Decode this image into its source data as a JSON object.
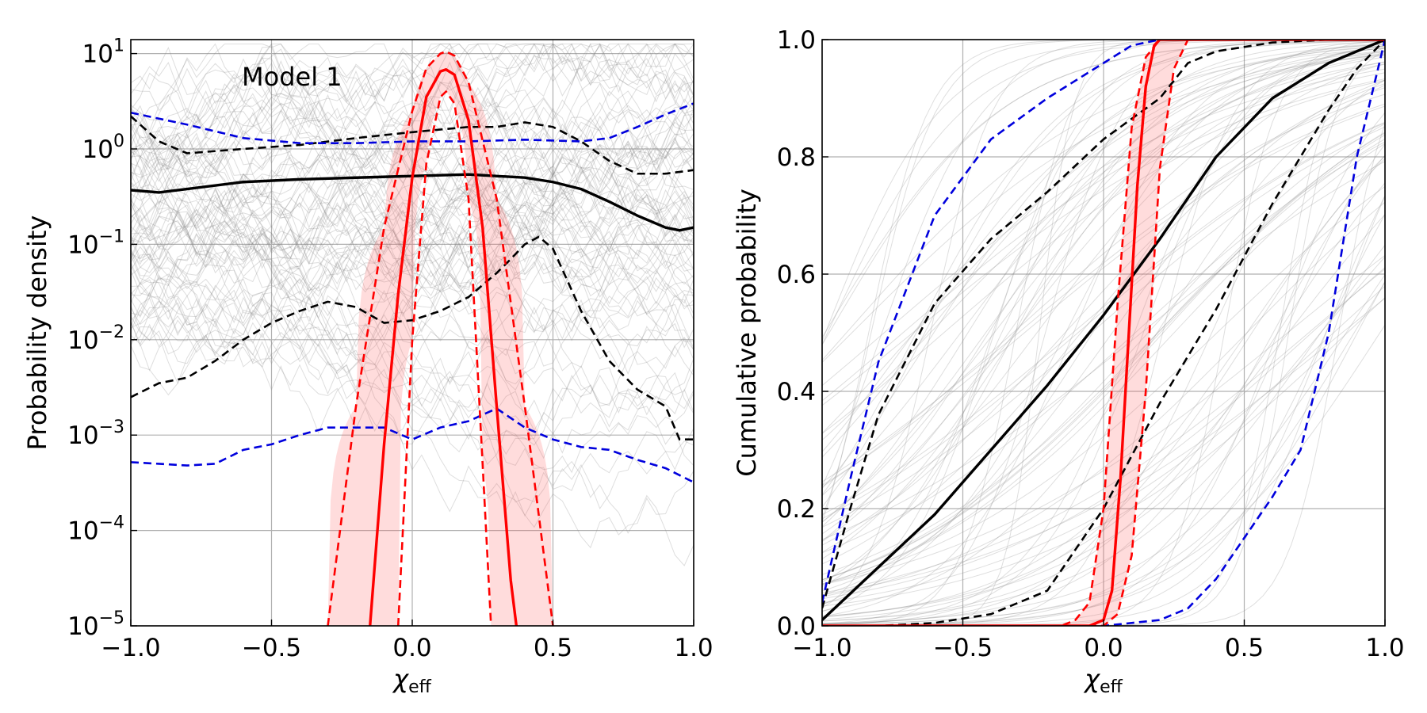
{
  "chart_data": [
    {
      "type": "line",
      "panel": "left",
      "yscale": "log",
      "xlabel_main": "χ",
      "xlabel_sub": "eff",
      "ylabel": "Probability density",
      "annotation": "Model 1",
      "xlim": [
        -1.0,
        1.0
      ],
      "ylim": [
        1e-05,
        14
      ],
      "grid": true,
      "x_ticks": [
        {
          "value": -1.0,
          "label": "−1.0"
        },
        {
          "value": -0.5,
          "label": "−0.5"
        },
        {
          "value": 0.0,
          "label": "0.0"
        },
        {
          "value": 0.5,
          "label": "0.5"
        },
        {
          "value": 1.0,
          "label": "1.0"
        }
      ],
      "y_ticks": [
        {
          "value": 1e-05,
          "base": "10",
          "exp": "−5"
        },
        {
          "value": 0.0001,
          "base": "10",
          "exp": "−4"
        },
        {
          "value": 0.001,
          "base": "10",
          "exp": "−3"
        },
        {
          "value": 0.01,
          "base": "10",
          "exp": "−2"
        },
        {
          "value": 0.1,
          "base": "10",
          "exp": "−1"
        },
        {
          "value": 1,
          "base": "10",
          "exp": "0"
        },
        {
          "value": 10,
          "base": "10",
          "exp": "1"
        }
      ],
      "series": [
        {
          "style": "solid",
          "color": "#000000",
          "x": [
            -1.0,
            -0.9,
            -0.8,
            -0.6,
            -0.4,
            -0.2,
            0.0,
            0.2,
            0.4,
            0.5,
            0.6,
            0.7,
            0.8,
            0.9,
            0.95,
            1.0
          ],
          "y": [
            0.37,
            0.35,
            0.38,
            0.45,
            0.48,
            0.5,
            0.52,
            0.54,
            0.5,
            0.45,
            0.38,
            0.28,
            0.2,
            0.15,
            0.14,
            0.15
          ]
        },
        {
          "style": "dashed",
          "color": "#000000",
          "x": [
            -1.0,
            -0.9,
            -0.8,
            -0.6,
            -0.4,
            -0.2,
            0.0,
            0.2,
            0.3,
            0.4,
            0.5,
            0.6,
            0.7,
            0.8,
            0.9,
            1.0
          ],
          "y": [
            2.2,
            1.2,
            0.9,
            1.0,
            1.1,
            1.3,
            1.5,
            1.7,
            1.7,
            1.9,
            1.7,
            1.2,
            0.75,
            0.55,
            0.55,
            0.6
          ]
        },
        {
          "style": "dashed",
          "color": "#000000",
          "x": [
            -1.0,
            -0.9,
            -0.8,
            -0.7,
            -0.6,
            -0.5,
            -0.4,
            -0.3,
            -0.2,
            -0.1,
            0.0,
            0.1,
            0.2,
            0.3,
            0.35,
            0.4,
            0.45,
            0.5,
            0.6,
            0.7,
            0.8,
            0.9,
            0.95,
            1.0
          ],
          "y": [
            0.0025,
            0.0035,
            0.004,
            0.006,
            0.01,
            0.015,
            0.02,
            0.025,
            0.022,
            0.015,
            0.016,
            0.02,
            0.028,
            0.05,
            0.07,
            0.1,
            0.12,
            0.09,
            0.02,
            0.006,
            0.003,
            0.002,
            0.0009,
            0.0009
          ]
        },
        {
          "style": "dashed",
          "color": "#0000dd",
          "x": [
            -1.0,
            -0.8,
            -0.6,
            -0.4,
            -0.2,
            0.0,
            0.2,
            0.4,
            0.6,
            0.7,
            0.8,
            0.9,
            1.0
          ],
          "y": [
            2.4,
            1.8,
            1.3,
            1.15,
            1.15,
            1.2,
            1.2,
            1.25,
            1.2,
            1.3,
            1.7,
            2.3,
            3.0
          ]
        },
        {
          "style": "dashed",
          "color": "#0000dd",
          "x": [
            -1.0,
            -0.9,
            -0.8,
            -0.7,
            -0.6,
            -0.5,
            -0.4,
            -0.3,
            -0.2,
            -0.1,
            0.0,
            0.1,
            0.2,
            0.3,
            0.4,
            0.5,
            0.6,
            0.7,
            0.8,
            0.9,
            1.0
          ],
          "y": [
            0.00052,
            0.0005,
            0.00048,
            0.0005,
            0.0007,
            0.0008,
            0.001,
            0.0012,
            0.0012,
            0.0012,
            0.0009,
            0.0012,
            0.0014,
            0.0019,
            0.0012,
            0.0009,
            0.00075,
            0.0007,
            0.00055,
            0.00045,
            0.00032
          ]
        },
        {
          "style": "solid",
          "color": "#ff0000",
          "x": [
            -0.15,
            -0.1,
            -0.05,
            0.0,
            0.05,
            0.1,
            0.12,
            0.15,
            0.2,
            0.25,
            0.3,
            0.35,
            0.37
          ],
          "y": [
            1e-05,
            0.0008,
            0.03,
            0.5,
            3.5,
            6.5,
            6.8,
            6.0,
            2.0,
            0.15,
            0.002,
            3e-05,
            1e-05
          ]
        },
        {
          "style": "dashed",
          "color": "#ff0000",
          "x": [
            -0.3,
            -0.2,
            -0.1,
            0.0,
            0.05,
            0.1,
            0.12,
            0.15,
            0.2,
            0.3,
            0.4,
            0.5
          ],
          "y": [
            1e-05,
            0.002,
            0.15,
            2.5,
            7.0,
            10.0,
            10.5,
            9.5,
            5.0,
            0.3,
            0.002,
            1e-05
          ]
        },
        {
          "style": "dashed",
          "color": "#ff0000",
          "x": [
            -0.05,
            0.0,
            0.05,
            0.1,
            0.12,
            0.15,
            0.2,
            0.25,
            0.28
          ],
          "y": [
            1e-05,
            0.01,
            0.7,
            3.5,
            4.0,
            3.0,
            0.3,
            0.0005,
            1e-05
          ]
        }
      ]
    },
    {
      "type": "line",
      "panel": "right",
      "xlabel_main": "χ",
      "xlabel_sub": "eff",
      "ylabel": "Cumulative probability",
      "xlim": [
        -1.0,
        1.0
      ],
      "ylim": [
        0.0,
        1.0
      ],
      "grid": true,
      "x_ticks": [
        {
          "value": -1.0,
          "label": "−1.0"
        },
        {
          "value": -0.5,
          "label": "−0.5"
        },
        {
          "value": 0.0,
          "label": "0.0"
        },
        {
          "value": 0.5,
          "label": "0.5"
        },
        {
          "value": 1.0,
          "label": "1.0"
        }
      ],
      "y_ticks": [
        {
          "value": 0.0,
          "label": "0.0"
        },
        {
          "value": 0.2,
          "label": "0.2"
        },
        {
          "value": 0.4,
          "label": "0.4"
        },
        {
          "value": 0.6,
          "label": "0.6"
        },
        {
          "value": 0.8,
          "label": "0.8"
        },
        {
          "value": 1.0,
          "label": "1.0"
        }
      ],
      "series": [
        {
          "style": "solid",
          "color": "#000000",
          "x": [
            -1.0,
            -0.8,
            -0.6,
            -0.4,
            -0.2,
            0.0,
            0.2,
            0.4,
            0.6,
            0.8,
            1.0
          ],
          "y": [
            0.01,
            0.1,
            0.19,
            0.3,
            0.41,
            0.53,
            0.66,
            0.8,
            0.9,
            0.96,
            1.0
          ]
        },
        {
          "style": "dashed",
          "color": "#000000",
          "x": [
            -1.0,
            -0.9,
            -0.8,
            -0.6,
            -0.4,
            -0.2,
            0.0,
            0.2,
            0.3,
            0.4,
            0.6,
            0.8,
            1.0
          ],
          "y": [
            0.03,
            0.2,
            0.36,
            0.55,
            0.66,
            0.74,
            0.83,
            0.9,
            0.96,
            0.98,
            0.995,
            1.0,
            1.0
          ]
        },
        {
          "style": "dashed",
          "color": "#000000",
          "x": [
            -1.0,
            -0.8,
            -0.6,
            -0.4,
            -0.2,
            0.0,
            0.2,
            0.4,
            0.6,
            0.8,
            0.9,
            1.0
          ],
          "y": [
            0.0,
            0.0,
            0.005,
            0.02,
            0.06,
            0.2,
            0.38,
            0.54,
            0.72,
            0.88,
            0.95,
            1.0
          ]
        },
        {
          "style": "dashed",
          "color": "#0000dd",
          "x": [
            -1.0,
            -0.9,
            -0.8,
            -0.6,
            -0.4,
            -0.2,
            -0.1,
            0.0,
            0.1,
            0.2,
            0.3,
            1.0
          ],
          "y": [
            0.04,
            0.25,
            0.45,
            0.7,
            0.83,
            0.9,
            0.93,
            0.96,
            0.99,
            1.0,
            1.0,
            1.0
          ]
        },
        {
          "style": "dashed",
          "color": "#0000dd",
          "x": [
            -1.0,
            0.0,
            0.2,
            0.3,
            0.4,
            0.5,
            0.6,
            0.7,
            0.8,
            0.9,
            1.0
          ],
          "y": [
            0.0,
            0.0,
            0.01,
            0.03,
            0.08,
            0.15,
            0.22,
            0.3,
            0.5,
            0.8,
            1.0
          ]
        },
        {
          "style": "solid",
          "color": "#ff0000",
          "x": [
            -1.0,
            -0.05,
            0.0,
            0.03,
            0.06,
            0.09,
            0.12,
            0.15,
            0.18,
            0.2,
            1.0
          ],
          "y": [
            0.0,
            0.0,
            0.01,
            0.06,
            0.25,
            0.5,
            0.75,
            0.92,
            0.99,
            1.0,
            1.0
          ]
        },
        {
          "style": "dashed",
          "color": "#ff0000",
          "x": [
            -1.0,
            -0.15,
            -0.1,
            -0.05,
            0.0,
            0.05,
            0.1,
            0.15,
            0.2,
            1.0
          ],
          "y": [
            0.0,
            0.0,
            0.01,
            0.04,
            0.2,
            0.55,
            0.85,
            0.97,
            1.0,
            1.0
          ]
        },
        {
          "style": "dashed",
          "color": "#ff0000",
          "x": [
            -1.0,
            0.0,
            0.05,
            0.1,
            0.15,
            0.2,
            0.25,
            0.3,
            1.0
          ],
          "y": [
            0.0,
            0.0,
            0.02,
            0.12,
            0.4,
            0.78,
            0.95,
            1.0,
            1.0
          ]
        }
      ]
    }
  ]
}
